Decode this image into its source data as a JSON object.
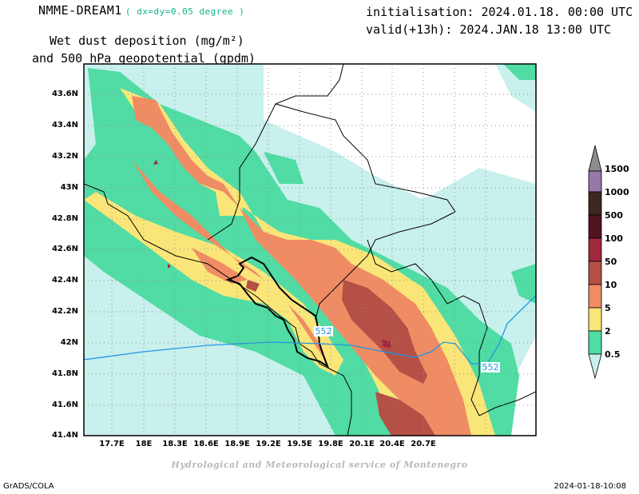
{
  "header": {
    "model": "NMME-DREAM1",
    "resolution": "( dx=dy=0.05 degree )",
    "field_line1": "Wet dust deposition (mg/m²)",
    "field_line2": "and 500 hPa geopotential (gpdm)",
    "initialisation": "initialisation: 2024.01.18. 00:00 UTC",
    "valid": "valid(+13h): 2024.JAN.18 13:00 UTC"
  },
  "map": {
    "lat_labels": [
      "43.6N",
      "43.4N",
      "43.2N",
      "43N",
      "42.8N",
      "42.6N",
      "42.4N",
      "42.2N",
      "42N",
      "41.8N",
      "41.6N",
      "41.4N"
    ],
    "lon_labels": [
      "17.7E",
      "18E",
      "18.3E",
      "18.6E",
      "18.9E",
      "19.2E",
      "19.5E",
      "19.8E",
      "20.1E",
      "20.4E",
      "20.7E"
    ],
    "contour_label": "552",
    "contour_color": "#1e96e6",
    "grid": true
  },
  "legend": {
    "levels": [
      "0.5",
      "2",
      "5",
      "10",
      "50",
      "100",
      "500",
      "1000",
      "1500"
    ],
    "colors": [
      "#c8f0ec",
      "#50dca4",
      "#fae678",
      "#f08c64",
      "#b45046",
      "#a0283c",
      "#50141e",
      "#3c281e",
      "#9678aa"
    ]
  },
  "footer": {
    "credit": "Hydrological and Meteorological service of Montenegro",
    "left": "GrADS/COLA",
    "right": "2024-01-18-10:08"
  }
}
